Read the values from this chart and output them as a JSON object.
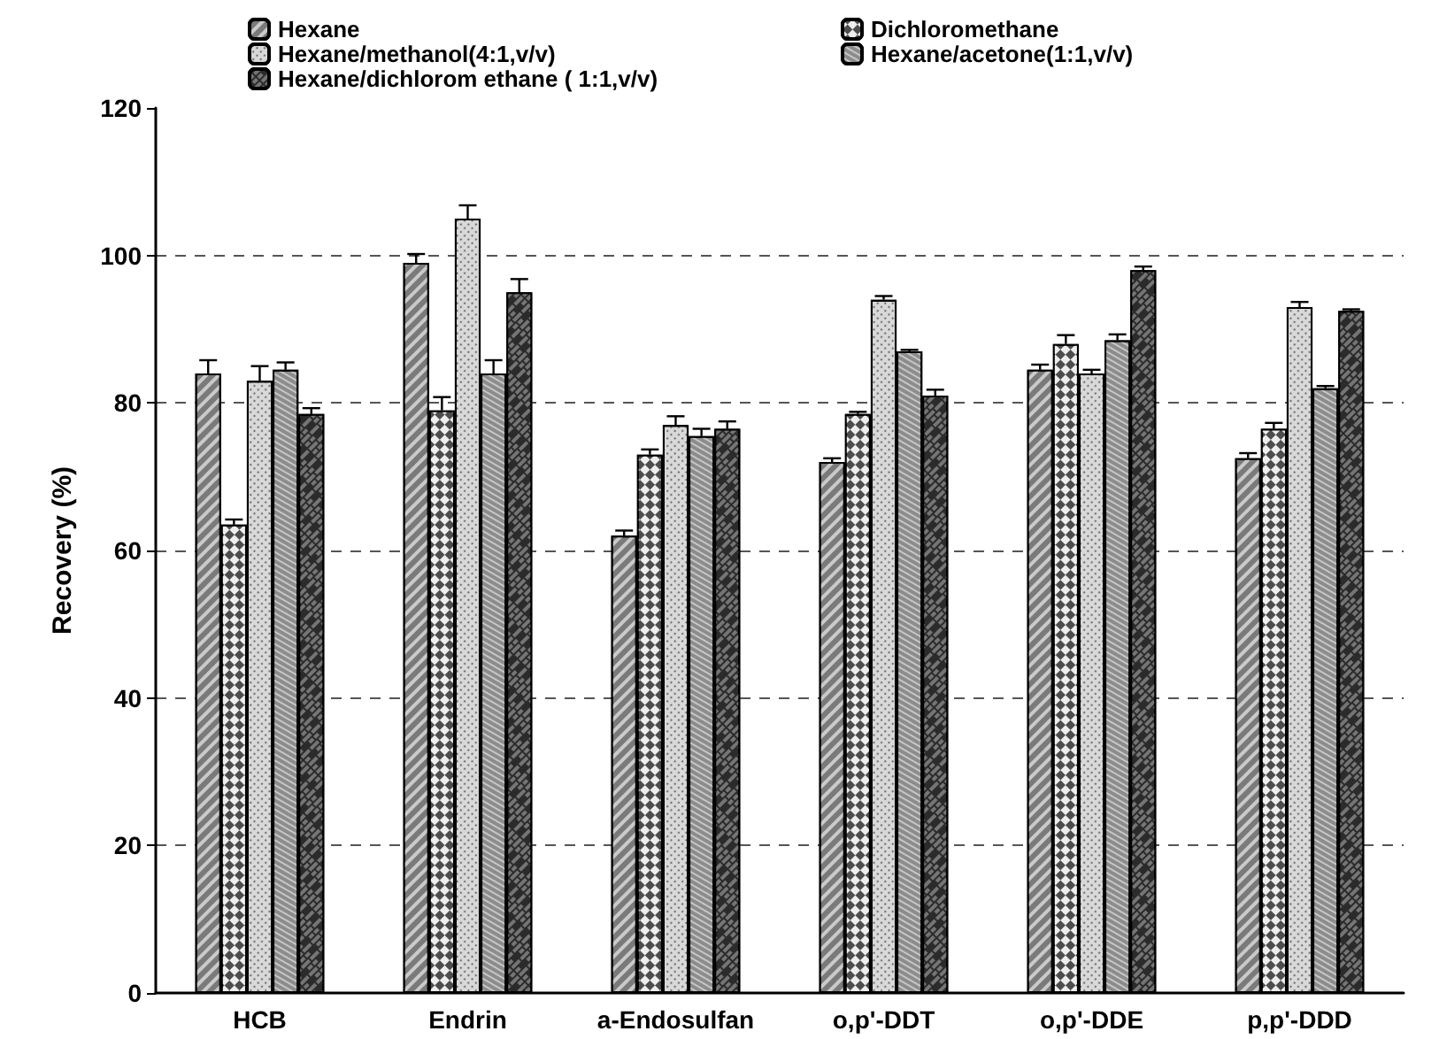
{
  "chart_data": {
    "type": "bar",
    "ylabel": "Recovery (%)",
    "categories": [
      "HCB",
      "Endrin",
      "a-Endosulfan",
      "o,p'-DDT",
      "o,p'-DDE",
      "p,p'-DDD"
    ],
    "series": [
      {
        "name": "Hexane",
        "color": "#7a7a7a",
        "values": [
          84,
          99,
          62,
          72,
          84.5,
          72.5
        ],
        "errors": [
          1.8,
          1.2,
          0.7,
          0.5,
          0.7,
          0.7
        ]
      },
      {
        "name": "Dichloromethane",
        "color": "#4d4d4d",
        "values": [
          63.5,
          79,
          73,
          78.5,
          88,
          76.5
        ],
        "errors": [
          0.7,
          1.8,
          0.7,
          0.3,
          1.2,
          0.8
        ]
      },
      {
        "name": "Hexane/methanol(4:1,v/v)",
        "color": "#d9d9d9",
        "values": [
          83,
          105,
          77,
          94,
          84,
          93
        ],
        "errors": [
          2,
          1.8,
          1.2,
          0.5,
          0.5,
          0.7
        ]
      },
      {
        "name": "Hexane/acetone(1:1,v/v)",
        "color": "#8c8c8c",
        "values": [
          84.5,
          84,
          75.5,
          87,
          88.5,
          82
        ],
        "errors": [
          1,
          1.8,
          1,
          0.2,
          0.8,
          0.3
        ]
      },
      {
        "name": "Hexane/dichlorom ethane ( 1:1,v/v)",
        "color": "#2b2b2b",
        "values": [
          78.5,
          95,
          76.5,
          81,
          98,
          92.5
        ],
        "errors": [
          0.8,
          1.8,
          1,
          0.8,
          0.5,
          0.2
        ]
      }
    ],
    "ylim": [
      0,
      120
    ],
    "yticks": [
      0,
      20,
      40,
      60,
      80,
      100,
      120
    ],
    "grid": "y",
    "legend": "top"
  }
}
